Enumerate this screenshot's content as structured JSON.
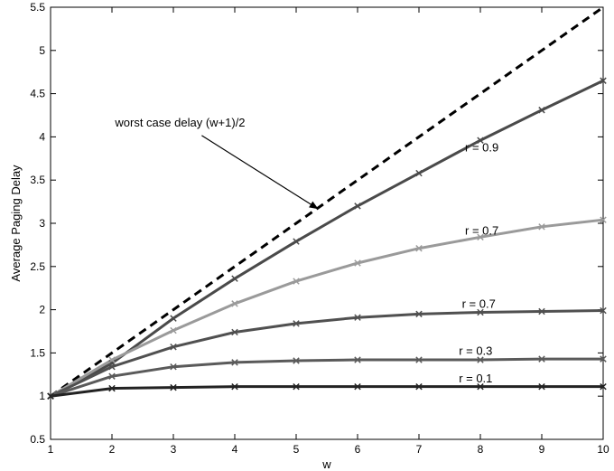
{
  "chart_data": {
    "type": "line",
    "title": "",
    "xlabel": "w",
    "ylabel": "Average Paging Delay",
    "xlim": [
      1,
      10
    ],
    "ylim": [
      0.5,
      5.5
    ],
    "xticks": [
      "1",
      "2",
      "3",
      "4",
      "5",
      "6",
      "7",
      "8",
      "9",
      "10"
    ],
    "yticks": [
      "0.5",
      "1",
      "1.5",
      "2",
      "2.5",
      "3",
      "3.5",
      "4",
      "4.5",
      "5",
      "5.5"
    ],
    "grid": false,
    "x": [
      1,
      2,
      3,
      4,
      5,
      6,
      7,
      8,
      9,
      10
    ],
    "series": [
      {
        "name": "worst case delay (w+1)/2",
        "values": [
          1,
          1.5,
          2,
          2.5,
          3,
          3.5,
          4,
          4.5,
          5,
          5.5
        ],
        "color": "#000000",
        "dashed": true,
        "markers": false
      },
      {
        "name": "r = 0.9",
        "values": [
          1,
          1.38,
          1.9,
          2.36,
          2.79,
          3.2,
          3.58,
          3.96,
          4.31,
          4.65
        ],
        "color": "#4a4a4a",
        "dashed": false,
        "markers": true
      },
      {
        "name": "r = 0.7",
        "values": [
          1,
          1.42,
          1.76,
          2.07,
          2.33,
          2.54,
          2.71,
          2.84,
          2.96,
          3.04
        ],
        "color": "#9a9a9a",
        "dashed": false,
        "markers": true
      },
      {
        "name": "r = 0.7",
        "values": [
          1,
          1.34,
          1.57,
          1.74,
          1.84,
          1.91,
          1.95,
          1.97,
          1.98,
          1.99
        ],
        "color": "#505050",
        "dashed": false,
        "markers": true
      },
      {
        "name": "r = 0.3",
        "values": [
          1,
          1.23,
          1.34,
          1.39,
          1.41,
          1.42,
          1.42,
          1.42,
          1.43,
          1.43
        ],
        "color": "#5a5a5a",
        "dashed": false,
        "markers": true
      },
      {
        "name": "r = 0.1",
        "values": [
          1,
          1.09,
          1.1,
          1.11,
          1.11,
          1.11,
          1.11,
          1.11,
          1.11,
          1.11
        ],
        "color": "#222222",
        "dashed": false,
        "markers": true
      }
    ],
    "annotations": [
      {
        "text": "worst case delay (w+1)/2",
        "x": 2.05,
        "y": 4.12,
        "arrow_to": [
          5.35,
          3.17
        ]
      },
      {
        "text": "r = 0.9",
        "x": 7.75,
        "y": 3.83
      },
      {
        "text": "r = 0.7",
        "x": 7.75,
        "y": 2.87
      },
      {
        "text": "r = 0.7",
        "x": 7.7,
        "y": 2.02
      },
      {
        "text": "r = 0.3",
        "x": 7.65,
        "y": 1.48
      },
      {
        "text": "r = 0.1",
        "x": 7.65,
        "y": 1.16
      }
    ]
  }
}
